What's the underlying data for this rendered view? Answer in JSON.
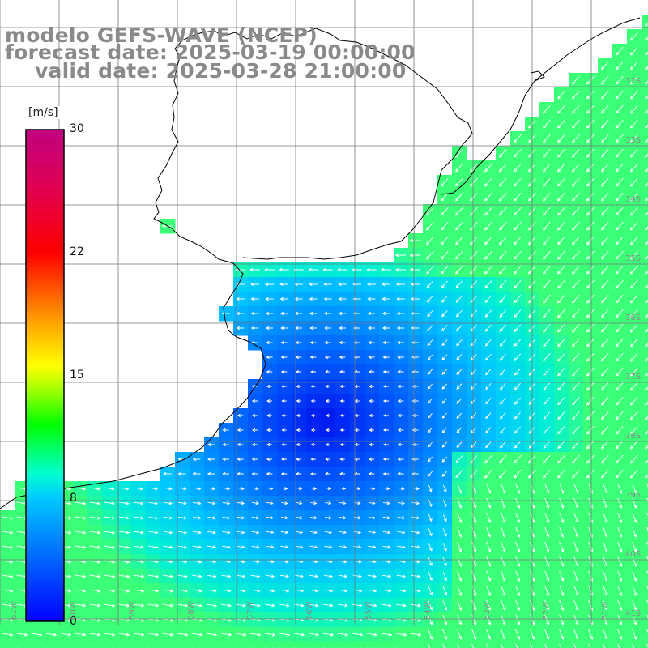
{
  "title": {
    "line1": "modelo GEFS-WAVE (NCEP)",
    "line2": "forecast date: 2025-03-19 00:00:00",
    "line3": "valid date: 2025-03-28 21:00:00"
  },
  "colorbar": {
    "unit": "[m/s]",
    "ticks": [
      "30",
      "22",
      "15",
      "8",
      "0"
    ],
    "range": [
      0,
      30
    ],
    "colors": [
      "#0000ff",
      "#0070ff",
      "#00c8ff",
      "#00ffd0",
      "#00ff00",
      "#c8ff00",
      "#ffff00",
      "#ff9600",
      "#ff0000",
      "#e00050",
      "#c00080"
    ]
  },
  "map": {
    "variable": "wind speed and direction",
    "grid": true,
    "lat_labels": [
      "32S",
      "33S",
      "34S",
      "35S",
      "36S",
      "37S",
      "38S",
      "39S",
      "40S",
      "41S"
    ],
    "lon_labels": [
      "61W",
      "60W",
      "59W",
      "58W",
      "57W",
      "56W",
      "55W",
      "54W",
      "53W",
      "52W",
      "51W"
    ],
    "land_color": "#ffffff",
    "coastline_color": "#000000"
  }
}
